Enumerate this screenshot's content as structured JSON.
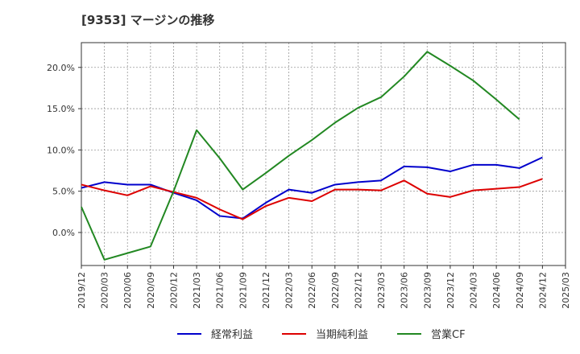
{
  "chart_data": {
    "type": "line",
    "title": "[9353]  マージンの推移",
    "x": [
      "2019/12",
      "2020/03",
      "2020/06",
      "2020/09",
      "2020/12",
      "2021/03",
      "2021/06",
      "2021/09",
      "2021/12",
      "2022/03",
      "2022/06",
      "2022/09",
      "2022/12",
      "2023/03",
      "2023/06",
      "2023/09",
      "2023/12",
      "2024/03",
      "2024/06",
      "2024/09",
      "2024/12",
      "2025/03"
    ],
    "ylim": [
      -4.0,
      23.0
    ],
    "yticks": [
      0,
      5,
      10,
      15,
      20
    ],
    "ytick_labels": [
      "0.0%",
      "5.0%",
      "10.0%",
      "15.0%",
      "20.0%"
    ],
    "grid": true,
    "legend_position": "bottom",
    "series": [
      {
        "name": "経常利益",
        "color": "#0000cc",
        "values": [
          5.4,
          6.1,
          5.8,
          5.8,
          4.8,
          3.9,
          2.0,
          1.7,
          3.6,
          5.2,
          4.8,
          5.8,
          6.1,
          6.3,
          8.0,
          7.9,
          7.4,
          8.2,
          8.2,
          7.8,
          9.1,
          null
        ]
      },
      {
        "name": "当期純利益",
        "color": "#dd0000",
        "values": [
          5.8,
          5.1,
          4.5,
          5.6,
          4.9,
          4.2,
          2.8,
          1.6,
          3.2,
          4.2,
          3.8,
          5.2,
          5.2,
          5.1,
          6.3,
          4.7,
          4.3,
          5.1,
          5.3,
          5.5,
          6.5,
          null
        ]
      },
      {
        "name": "営業CF",
        "color": "#228822",
        "values": [
          3.1,
          -3.3,
          -2.5,
          -1.7,
          5.0,
          12.4,
          9.0,
          5.2,
          7.2,
          9.3,
          11.2,
          13.3,
          15.1,
          16.4,
          18.9,
          21.9,
          20.2,
          18.4,
          16.1,
          13.7,
          null,
          null
        ]
      }
    ]
  }
}
